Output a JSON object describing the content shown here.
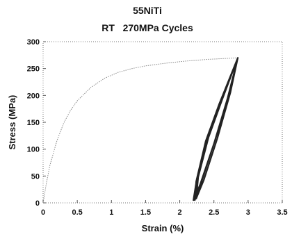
{
  "chart_data": {
    "type": "line",
    "title": "55NiTi",
    "subtitle": "RT   270MPa Cycles",
    "xlabel": "Strain (%)",
    "ylabel": "Stress (MPa)",
    "xlim": [
      0,
      3.5
    ],
    "ylim": [
      0,
      300
    ],
    "xticks": [
      "0",
      "0.5",
      "1",
      "1.5",
      "2",
      "2.5",
      "3",
      "3.5"
    ],
    "yticks": [
      "0",
      "50",
      "100",
      "150",
      "200",
      "250",
      "300"
    ],
    "grid": false,
    "series": [
      {
        "kind": "initial-loading",
        "x": [
          0.0,
          0.05,
          0.1,
          0.2,
          0.3,
          0.4,
          0.5,
          0.7,
          0.9,
          1.1,
          1.3,
          1.5,
          1.8,
          2.1,
          2.4,
          2.7,
          2.85
        ],
        "y": [
          0,
          38,
          70,
          115,
          148,
          172,
          190,
          215,
          232,
          243,
          250,
          255,
          260,
          264,
          267,
          269,
          270
        ]
      },
      {
        "kind": "cyclic-loops",
        "x": [
          2.85,
          2.6,
          2.4,
          2.25,
          2.2,
          2.3,
          2.5,
          2.7,
          2.85,
          2.58,
          2.38,
          2.24,
          2.22,
          2.32,
          2.52,
          2.72,
          2.85,
          2.62,
          2.42,
          2.27,
          2.24,
          2.35,
          2.55,
          2.74,
          2.85
        ],
        "y": [
          270,
          190,
          120,
          45,
          5,
          35,
          110,
          195,
          270,
          185,
          115,
          40,
          5,
          40,
          118,
          200,
          270,
          192,
          122,
          48,
          8,
          42,
          120,
          205,
          270
        ]
      }
    ]
  }
}
